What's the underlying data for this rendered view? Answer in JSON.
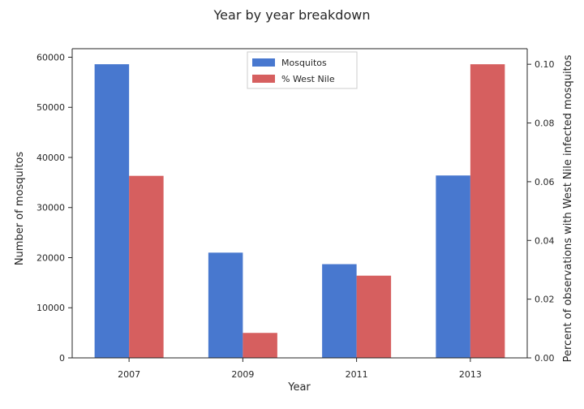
{
  "chart_data": {
    "type": "bar",
    "title": "Year by year breakdown",
    "xlabel": "Year",
    "ylabel": "Number of mosquitos",
    "y2label": "Percent of observations with West Nile infected mosquitos",
    "categories": [
      "2007",
      "2009",
      "2011",
      "2013"
    ],
    "ylim": [
      0,
      61700
    ],
    "y2lim": [
      0,
      0.1053
    ],
    "yticks": [
      "0",
      "10000",
      "20000",
      "30000",
      "40000",
      "50000",
      "60000"
    ],
    "y2ticks": [
      "0.00",
      "0.02",
      "0.04",
      "0.06",
      "0.08",
      "0.10"
    ],
    "series": [
      {
        "name": "Mosquitos",
        "axis": "left",
        "color": "#4878cf",
        "values": [
          58600,
          21000,
          18700,
          36400
        ]
      },
      {
        "name": "% West Nile",
        "axis": "right",
        "color": "#d65f5f",
        "values": [
          0.062,
          0.0085,
          0.028,
          0.1
        ]
      }
    ],
    "legend": "top-center",
    "grid": false
  }
}
